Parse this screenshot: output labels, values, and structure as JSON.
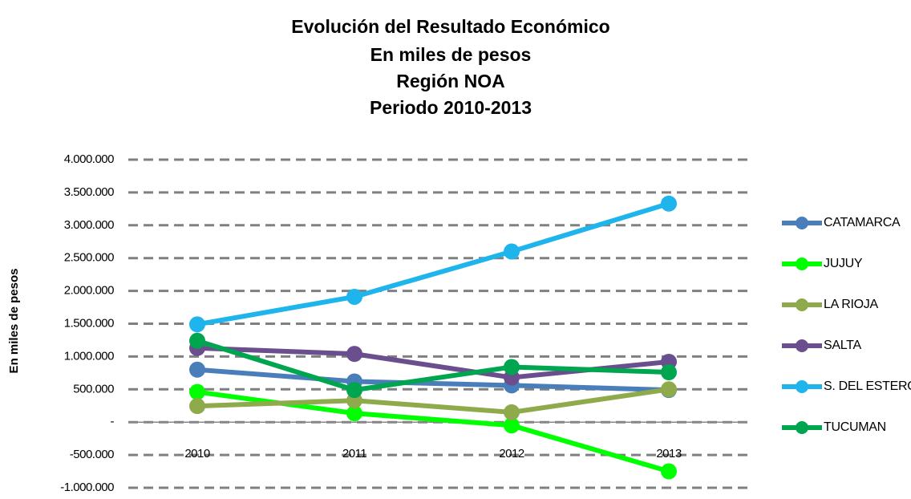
{
  "chart_data": {
    "type": "line",
    "title": [
      "Evolución del Resultado Económico",
      "En miles de pesos",
      "Región NOA",
      "Periodo 2010-2013"
    ],
    "y_label": "En miles de pesos",
    "categories": [
      "2010",
      "2011",
      "2012",
      "2013"
    ],
    "series": [
      {
        "name": "CATAMARCA",
        "color": "#4a7ebb",
        "values": [
          800000,
          620000,
          560000,
          490000
        ]
      },
      {
        "name": "JUJUY",
        "color": "#00ff00",
        "values": [
          460000,
          135000,
          -50000,
          -750000
        ]
      },
      {
        "name": "LA RIOJA",
        "color": "#8faa4a",
        "values": [
          245000,
          330000,
          150000,
          500000
        ]
      },
      {
        "name": "SALTA",
        "color": "#6b4e8e",
        "values": [
          1130000,
          1040000,
          680000,
          920000
        ]
      },
      {
        "name": "S. DEL ESTERO",
        "color": "#1fb4ec",
        "values": [
          1490000,
          1910000,
          2600000,
          3330000
        ]
      },
      {
        "name": "TUCUMAN",
        "color": "#00a550",
        "values": [
          1240000,
          490000,
          840000,
          760000
        ]
      }
    ],
    "ylim": [
      -1000000,
      4000000
    ],
    "yticks": [
      {
        "value": -1000000,
        "label": "-1.000.000"
      },
      {
        "value": -500000,
        "label": "-500.000"
      },
      {
        "value": 0,
        "label": "-"
      },
      {
        "value": 500000,
        "label": "500.000"
      },
      {
        "value": 1000000,
        "label": "1.000.000"
      },
      {
        "value": 1500000,
        "label": "1.500.000"
      },
      {
        "value": 2000000,
        "label": "2.000.000"
      },
      {
        "value": 2500000,
        "label": "2.500.000"
      },
      {
        "value": 3000000,
        "label": "3.000.000"
      },
      {
        "value": 3500000,
        "label": "3.500.000"
      },
      {
        "value": 4000000,
        "label": "4.000.000"
      }
    ],
    "grid": true,
    "legend": "right"
  }
}
